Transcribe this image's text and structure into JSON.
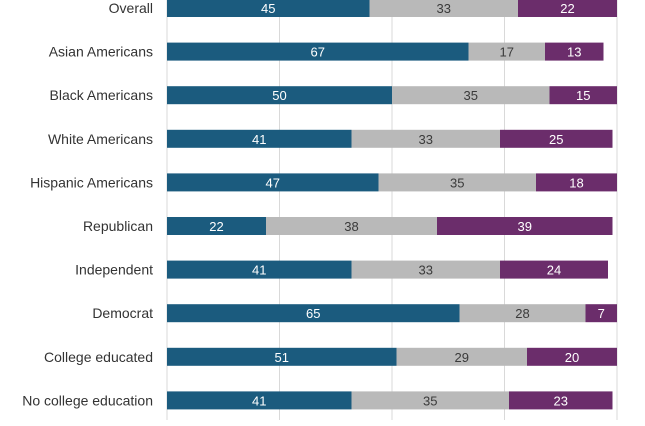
{
  "chart_data": {
    "type": "bar",
    "orientation": "horizontal",
    "stacked": true,
    "categories": [
      "Overall",
      "Asian Americans",
      "Black Americans",
      "White Americans",
      "Hispanic Americans",
      "Republican",
      "Independent",
      "Democrat",
      "College educated",
      "No college education"
    ],
    "series": [
      {
        "color": "#1b5b7e",
        "label_color": "#ffffff",
        "values": [
          45,
          67,
          50,
          41,
          47,
          22,
          41,
          65,
          51,
          41
        ]
      },
      {
        "color": "#b9b9b9",
        "label_color": "#3a3a3a",
        "values": [
          33,
          17,
          35,
          33,
          35,
          38,
          33,
          28,
          29,
          35
        ]
      },
      {
        "color": "#6b2d6b",
        "label_color": "#ffffff",
        "values": [
          22,
          13,
          15,
          25,
          18,
          39,
          24,
          7,
          20,
          23
        ]
      }
    ],
    "xlim": [
      0,
      100
    ],
    "grid": true,
    "title": "",
    "xlabel": "",
    "ylabel": ""
  }
}
